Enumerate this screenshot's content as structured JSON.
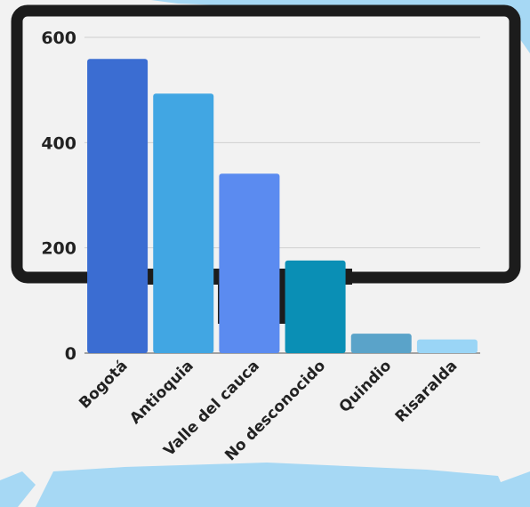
{
  "chart_data": {
    "type": "bar",
    "title": "",
    "xlabel": "",
    "ylabel": "",
    "categories": [
      "Bogotá",
      "Antioquia",
      "Valle del cauca",
      "No desconocido",
      "Quindio",
      "Risaralda"
    ],
    "values": [
      559,
      493,
      341,
      176,
      37,
      26
    ],
    "yticks": [
      "0",
      "200",
      "400",
      "600"
    ],
    "ylim": [
      0,
      600
    ],
    "grid": true,
    "legend": "none",
    "colors": [
      "#3b6dd2",
      "#41a6e3",
      "#5b8bf0",
      "#0a8fb5",
      "#5aa3c9",
      "#9ad5f6"
    ]
  },
  "decor": {
    "background": "#f2f2f2",
    "accent_light": "#a6d8f4",
    "monitor_frame": "#1c1c1c"
  }
}
